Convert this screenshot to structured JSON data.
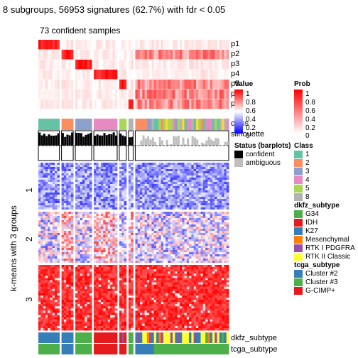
{
  "title": "8 subgroups, 56953 signatures (62.7%) with fdr < 0.05",
  "subtitle": "73 confident samples",
  "row_annotations": [
    "p1",
    "p2",
    "p3",
    "p4",
    "p5",
    "p6",
    "p7",
    "class",
    "silhouette"
  ],
  "bottom_annotations": [
    "dkfz_subtype",
    "tcga_subtype"
  ],
  "y_axis_label": "k-means with 3 groups",
  "k_groups": [
    "1",
    "2",
    "3"
  ],
  "legends": {
    "value": {
      "title": "Value",
      "ticks": [
        "1",
        "0.8",
        "0.6",
        "0.4",
        "0.2",
        "0"
      ]
    },
    "prob": {
      "title": "Prob",
      "ticks": [
        "1",
        "0.8",
        "0.6",
        "0.4",
        "0.2",
        "0"
      ]
    },
    "status": {
      "title": "Status (barplots)",
      "items": [
        {
          "label": "confident",
          "color": "#000000"
        },
        {
          "label": "ambiguous",
          "color": "#bebebe"
        }
      ]
    },
    "class": {
      "title": "Class",
      "items": [
        {
          "label": "1",
          "color": "#66c2a5"
        },
        {
          "label": "2",
          "color": "#fc8d62"
        },
        {
          "label": "3",
          "color": "#8da0cb"
        },
        {
          "label": "4",
          "color": "#e78ac3"
        },
        {
          "label": "5",
          "color": "#a6d854"
        },
        {
          "label": "8",
          "color": "#b3b3b3"
        }
      ]
    },
    "dkfz": {
      "title": "dkfz_subtype",
      "items": [
        {
          "label": "G34",
          "color": "#4daf4a"
        },
        {
          "label": "IDH",
          "color": "#e41a1c"
        },
        {
          "label": "K27",
          "color": "#377eb8"
        },
        {
          "label": "Mesenchymal",
          "color": "#ff7f00"
        },
        {
          "label": "RTK I PDGFRA",
          "color": "#984ea3"
        },
        {
          "label": "RTK II Classic",
          "color": "#ffff33"
        }
      ]
    },
    "tcga": {
      "title": "tcga_subtype",
      "items": [
        {
          "label": "Cluster #2",
          "color": "#377eb8"
        },
        {
          "label": "Cluster #3",
          "color": "#4daf4a"
        },
        {
          "label": "G-CIMP+",
          "color": "#e41a1c"
        }
      ]
    }
  },
  "colors": {
    "low": "#0000ff",
    "mid": "#ffffff",
    "high": "#ff0000",
    "prob_high": "#ff0000",
    "prob_low": "#ffffff"
  },
  "chart_data": {
    "type": "heatmap",
    "title": "8 subgroups, 56953 signatures (62.7%) with fdr < 0.05",
    "subtitle": "73 confident samples",
    "row_split": [
      "1",
      "2",
      "3"
    ],
    "value_range": [
      0,
      1
    ],
    "prob_range": [
      0,
      1
    ],
    "column_groups": [
      {
        "class": "1",
        "columns": 9
      },
      {
        "class": "2",
        "columns": 5
      },
      {
        "class": "3",
        "columns": 7
      },
      {
        "class": "4",
        "columns": 10
      },
      {
        "class": "5",
        "columns": 3
      },
      {
        "class": "8",
        "columns": 2
      },
      {
        "class": "mixed",
        "columns": 40
      }
    ]
  }
}
